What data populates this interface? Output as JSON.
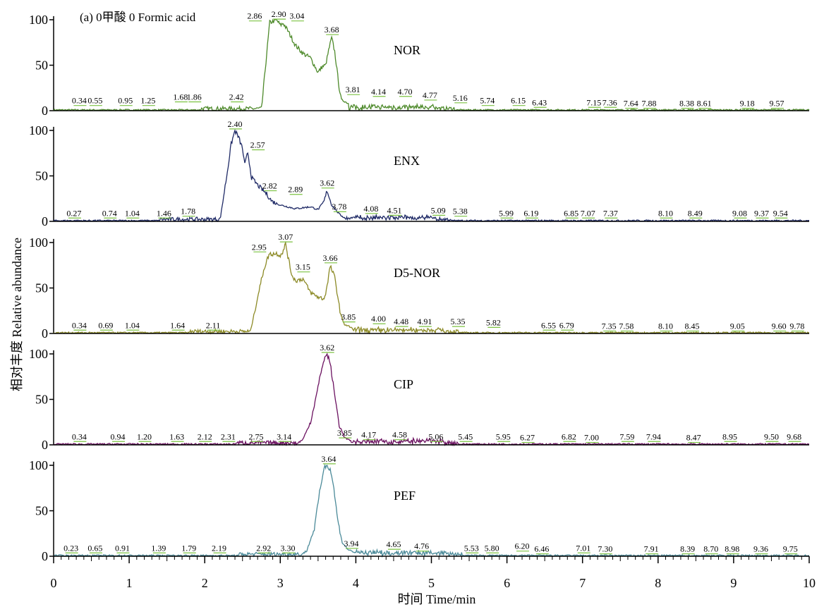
{
  "chart_data": {
    "type": "line",
    "title": "(a) 0甲酸 0 Formic acid",
    "xlabel": "时间 Time/min",
    "ylabel": "相对丰度 Relative abundance",
    "xlim": [
      0,
      10
    ],
    "ylim": [
      0,
      100
    ],
    "x_ticks": [
      "0",
      "1",
      "2",
      "3",
      "4",
      "5",
      "6",
      "7",
      "8",
      "9",
      "10"
    ],
    "y_ticks": [
      "0",
      "50",
      "100"
    ],
    "accent_label_color": "#7cc242",
    "panels": [
      {
        "name": "NOR",
        "color": "#4e8a2b",
        "peaks": [
          [
            2.75,
            0
          ],
          [
            2.8,
            45
          ],
          [
            2.86,
            97
          ],
          [
            2.9,
            98
          ],
          [
            2.95,
            100
          ],
          [
            3.0,
            94
          ],
          [
            3.04,
            96
          ],
          [
            3.1,
            88
          ],
          [
            3.2,
            72
          ],
          [
            3.3,
            63
          ],
          [
            3.4,
            58
          ],
          [
            3.5,
            42
          ],
          [
            3.55,
            48
          ],
          [
            3.6,
            50
          ],
          [
            3.65,
            70
          ],
          [
            3.68,
            80
          ],
          [
            3.72,
            65
          ],
          [
            3.78,
            25
          ],
          [
            3.81,
            12
          ],
          [
            3.9,
            8
          ]
        ],
        "labels": [
          {
            "t": "0.34",
            "x": 0.34,
            "y": 8
          },
          {
            "t": "0.55",
            "x": 0.55,
            "y": 8
          },
          {
            "t": "0.95",
            "x": 0.95,
            "y": 8
          },
          {
            "t": "1.25",
            "x": 1.25,
            "y": 8
          },
          {
            "t": "1.68",
            "x": 1.68,
            "y": 12
          },
          {
            "t": "1.86",
            "x": 1.86,
            "y": 12
          },
          {
            "t": "2.42",
            "x": 2.42,
            "y": 12
          },
          {
            "t": "2.86",
            "x": 2.66,
            "y": 101
          },
          {
            "t": "2.90",
            "x": 2.98,
            "y": 103
          },
          {
            "t": "3.04",
            "x": 3.22,
            "y": 101
          },
          {
            "t": "3.68",
            "x": 3.68,
            "y": 86
          },
          {
            "t": "3.81",
            "x": 3.96,
            "y": 20
          },
          {
            "t": "4.14",
            "x": 4.3,
            "y": 18
          },
          {
            "t": "4.70",
            "x": 4.65,
            "y": 18
          },
          {
            "t": "4.77",
            "x": 4.98,
            "y": 14
          },
          {
            "t": "5.16",
            "x": 5.38,
            "y": 11
          },
          {
            "t": "5.74",
            "x": 5.74,
            "y": 8
          },
          {
            "t": "6.15",
            "x": 6.15,
            "y": 8
          },
          {
            "t": "6.43",
            "x": 6.43,
            "y": 6
          },
          {
            "t": "7.15",
            "x": 7.15,
            "y": 6
          },
          {
            "t": "7.36",
            "x": 7.36,
            "y": 6
          },
          {
            "t": "7.64",
            "x": 7.64,
            "y": 5
          },
          {
            "t": "7.88",
            "x": 7.88,
            "y": 5
          },
          {
            "t": "8.38",
            "x": 8.38,
            "y": 5
          },
          {
            "t": "8.61",
            "x": 8.61,
            "y": 5
          },
          {
            "t": "9.18",
            "x": 9.18,
            "y": 5
          },
          {
            "t": "9.57",
            "x": 9.57,
            "y": 5
          }
        ]
      },
      {
        "name": "ENX",
        "color": "#1f2a66",
        "peaks": [
          [
            2.2,
            0
          ],
          [
            2.3,
            55
          ],
          [
            2.35,
            85
          ],
          [
            2.4,
            100
          ],
          [
            2.45,
            92
          ],
          [
            2.5,
            80
          ],
          [
            2.53,
            62
          ],
          [
            2.57,
            76
          ],
          [
            2.62,
            48
          ],
          [
            2.7,
            40
          ],
          [
            2.82,
            30
          ],
          [
            2.89,
            22
          ],
          [
            3.0,
            18
          ],
          [
            3.2,
            14
          ],
          [
            3.4,
            16
          ],
          [
            3.5,
            13
          ],
          [
            3.58,
            22
          ],
          [
            3.62,
            34
          ],
          [
            3.68,
            18
          ],
          [
            3.78,
            8
          ],
          [
            3.85,
            4
          ]
        ],
        "labels": [
          {
            "t": "0.27",
            "x": 0.27,
            "y": 6
          },
          {
            "t": "0.74",
            "x": 0.74,
            "y": 6
          },
          {
            "t": "1.04",
            "x": 1.04,
            "y": 6
          },
          {
            "t": "1.46",
            "x": 1.46,
            "y": 6
          },
          {
            "t": "1.78",
            "x": 1.78,
            "y": 8
          },
          {
            "t": "2.40",
            "x": 2.4,
            "y": 104
          },
          {
            "t": "2.57",
            "x": 2.7,
            "y": 81
          },
          {
            "t": "2.82",
            "x": 2.86,
            "y": 36
          },
          {
            "t": "2.89",
            "x": 3.2,
            "y": 32
          },
          {
            "t": "3.62",
            "x": 3.62,
            "y": 39
          },
          {
            "t": "3.78",
            "x": 3.78,
            "y": 13
          },
          {
            "t": "4.08",
            "x": 4.2,
            "y": 11
          },
          {
            "t": "4.51",
            "x": 4.51,
            "y": 9
          },
          {
            "t": "5.09",
            "x": 5.09,
            "y": 9
          },
          {
            "t": "5.38",
            "x": 5.38,
            "y": 8
          },
          {
            "t": "5.99",
            "x": 5.99,
            "y": 6
          },
          {
            "t": "6.19",
            "x": 6.32,
            "y": 6
          },
          {
            "t": "6.85",
            "x": 6.85,
            "y": 6
          },
          {
            "t": "7.07",
            "x": 7.07,
            "y": 6
          },
          {
            "t": "7.37",
            "x": 7.37,
            "y": 6
          },
          {
            "t": "8.10",
            "x": 8.1,
            "y": 6
          },
          {
            "t": "8.49",
            "x": 8.49,
            "y": 6
          },
          {
            "t": "9.08",
            "x": 9.08,
            "y": 6
          },
          {
            "t": "9.37",
            "x": 9.37,
            "y": 6
          },
          {
            "t": "9.54",
            "x": 9.62,
            "y": 6
          }
        ]
      },
      {
        "name": "D5-NOR",
        "color": "#8c8a26",
        "peaks": [
          [
            2.6,
            0
          ],
          [
            2.7,
            40
          ],
          [
            2.78,
            70
          ],
          [
            2.85,
            87
          ],
          [
            2.95,
            88
          ],
          [
            3.0,
            86
          ],
          [
            3.05,
            92
          ],
          [
            3.07,
            100
          ],
          [
            3.1,
            85
          ],
          [
            3.15,
            65
          ],
          [
            3.2,
            58
          ],
          [
            3.3,
            60
          ],
          [
            3.4,
            45
          ],
          [
            3.5,
            40
          ],
          [
            3.58,
            38
          ],
          [
            3.62,
            52
          ],
          [
            3.66,
            74
          ],
          [
            3.72,
            62
          ],
          [
            3.8,
            20
          ],
          [
            3.85,
            10
          ],
          [
            3.95,
            6
          ]
        ],
        "labels": [
          {
            "t": "0.34",
            "x": 0.34,
            "y": 6
          },
          {
            "t": "0.69",
            "x": 0.69,
            "y": 6
          },
          {
            "t": "1.04",
            "x": 1.04,
            "y": 6
          },
          {
            "t": "1.64",
            "x": 1.64,
            "y": 6
          },
          {
            "t": "2.11",
            "x": 2.11,
            "y": 6
          },
          {
            "t": "2.95",
            "x": 2.72,
            "y": 92
          },
          {
            "t": "3.07",
            "x": 3.07,
            "y": 103
          },
          {
            "t": "3.15",
            "x": 3.3,
            "y": 70
          },
          {
            "t": "3.66",
            "x": 3.66,
            "y": 80
          },
          {
            "t": "3.85",
            "x": 3.9,
            "y": 15
          },
          {
            "t": "4.00",
            "x": 4.3,
            "y": 13
          },
          {
            "t": "4.48",
            "x": 4.6,
            "y": 10
          },
          {
            "t": "4.91",
            "x": 4.91,
            "y": 10
          },
          {
            "t": "5.35",
            "x": 5.35,
            "y": 10
          },
          {
            "t": "5.82",
            "x": 5.82,
            "y": 9
          },
          {
            "t": "6.55",
            "x": 6.55,
            "y": 6
          },
          {
            "t": "6.79",
            "x": 6.79,
            "y": 6
          },
          {
            "t": "7.35",
            "x": 7.35,
            "y": 5
          },
          {
            "t": "7.58",
            "x": 7.58,
            "y": 5
          },
          {
            "t": "8.10",
            "x": 8.1,
            "y": 5
          },
          {
            "t": "8.45",
            "x": 8.45,
            "y": 5
          },
          {
            "t": "9.05",
            "x": 9.05,
            "y": 5
          },
          {
            "t": "9.60",
            "x": 9.6,
            "y": 5
          },
          {
            "t": "9.78",
            "x": 9.84,
            "y": 5
          }
        ]
      },
      {
        "name": "CIP",
        "color": "#6b1160",
        "peaks": [
          [
            3.2,
            0
          ],
          [
            3.3,
            6
          ],
          [
            3.4,
            25
          ],
          [
            3.48,
            55
          ],
          [
            3.55,
            85
          ],
          [
            3.6,
            98
          ],
          [
            3.62,
            100
          ],
          [
            3.66,
            90
          ],
          [
            3.72,
            55
          ],
          [
            3.78,
            22
          ],
          [
            3.85,
            8
          ],
          [
            3.95,
            3
          ]
        ],
        "labels": [
          {
            "t": "0.34",
            "x": 0.34,
            "y": 6
          },
          {
            "t": "0.94",
            "x": 0.85,
            "y": 6
          },
          {
            "t": "1.20",
            "x": 1.2,
            "y": 6
          },
          {
            "t": "1.63",
            "x": 1.63,
            "y": 6
          },
          {
            "t": "2.12",
            "x": 2.0,
            "y": 6
          },
          {
            "t": "2.31",
            "x": 2.31,
            "y": 6
          },
          {
            "t": "2.75",
            "x": 2.68,
            "y": 6
          },
          {
            "t": "3.14",
            "x": 3.05,
            "y": 6
          },
          {
            "t": "3.62",
            "x": 3.62,
            "y": 104
          },
          {
            "t": "3.85",
            "x": 3.85,
            "y": 10
          },
          {
            "t": "4.17",
            "x": 4.17,
            "y": 8
          },
          {
            "t": "4.58",
            "x": 4.58,
            "y": 8
          },
          {
            "t": "5.06",
            "x": 5.06,
            "y": 6
          },
          {
            "t": "5.45",
            "x": 5.45,
            "y": 6
          },
          {
            "t": "5.95",
            "x": 5.95,
            "y": 6
          },
          {
            "t": "6.27",
            "x": 6.27,
            "y": 5
          },
          {
            "t": "6.82",
            "x": 6.82,
            "y": 6
          },
          {
            "t": "7.00",
            "x": 7.12,
            "y": 5
          },
          {
            "t": "7.59",
            "x": 7.59,
            "y": 6
          },
          {
            "t": "7.94",
            "x": 7.94,
            "y": 6
          },
          {
            "t": "8.47",
            "x": 8.47,
            "y": 5
          },
          {
            "t": "8.95",
            "x": 8.95,
            "y": 6
          },
          {
            "t": "9.50",
            "x": 9.5,
            "y": 6
          },
          {
            "t": "9.68",
            "x": 9.8,
            "y": 6
          }
        ]
      },
      {
        "name": "PEF",
        "color": "#4b8a99",
        "peaks": [
          [
            3.25,
            0
          ],
          [
            3.35,
            6
          ],
          [
            3.45,
            30
          ],
          [
            3.52,
            70
          ],
          [
            3.58,
            98
          ],
          [
            3.62,
            100
          ],
          [
            3.66,
            96
          ],
          [
            3.7,
            80
          ],
          [
            3.76,
            40
          ],
          [
            3.82,
            15
          ],
          [
            3.9,
            7
          ],
          [
            4.0,
            4
          ]
        ],
        "labels": [
          {
            "t": "0.23",
            "x": 0.23,
            "y": 6
          },
          {
            "t": "0.65",
            "x": 0.55,
            "y": 6
          },
          {
            "t": "0.91",
            "x": 0.91,
            "y": 6
          },
          {
            "t": "1.39",
            "x": 1.39,
            "y": 6
          },
          {
            "t": "1.79",
            "x": 1.79,
            "y": 6
          },
          {
            "t": "2.19",
            "x": 2.19,
            "y": 6
          },
          {
            "t": "2.92",
            "x": 2.78,
            "y": 6
          },
          {
            "t": "3.30",
            "x": 3.1,
            "y": 6
          },
          {
            "t": "3.64",
            "x": 3.64,
            "y": 104
          },
          {
            "t": "3.94",
            "x": 3.94,
            "y": 11
          },
          {
            "t": "4.65",
            "x": 4.5,
            "y": 10
          },
          {
            "t": "4.76",
            "x": 4.87,
            "y": 8
          },
          {
            "t": "5.53",
            "x": 5.53,
            "y": 6
          },
          {
            "t": "5.80",
            "x": 5.8,
            "y": 6
          },
          {
            "t": "6.20",
            "x": 6.2,
            "y": 8
          },
          {
            "t": "6.46",
            "x": 6.46,
            "y": 5
          },
          {
            "t": "7.01",
            "x": 7.01,
            "y": 6
          },
          {
            "t": "7.30",
            "x": 7.3,
            "y": 5
          },
          {
            "t": "7.91",
            "x": 7.91,
            "y": 5
          },
          {
            "t": "8.39",
            "x": 8.39,
            "y": 5
          },
          {
            "t": "8.70",
            "x": 8.7,
            "y": 5
          },
          {
            "t": "8.98",
            "x": 8.98,
            "y": 5
          },
          {
            "t": "9.36",
            "x": 9.36,
            "y": 5
          },
          {
            "t": "9.75",
            "x": 9.75,
            "y": 5
          }
        ]
      }
    ]
  }
}
